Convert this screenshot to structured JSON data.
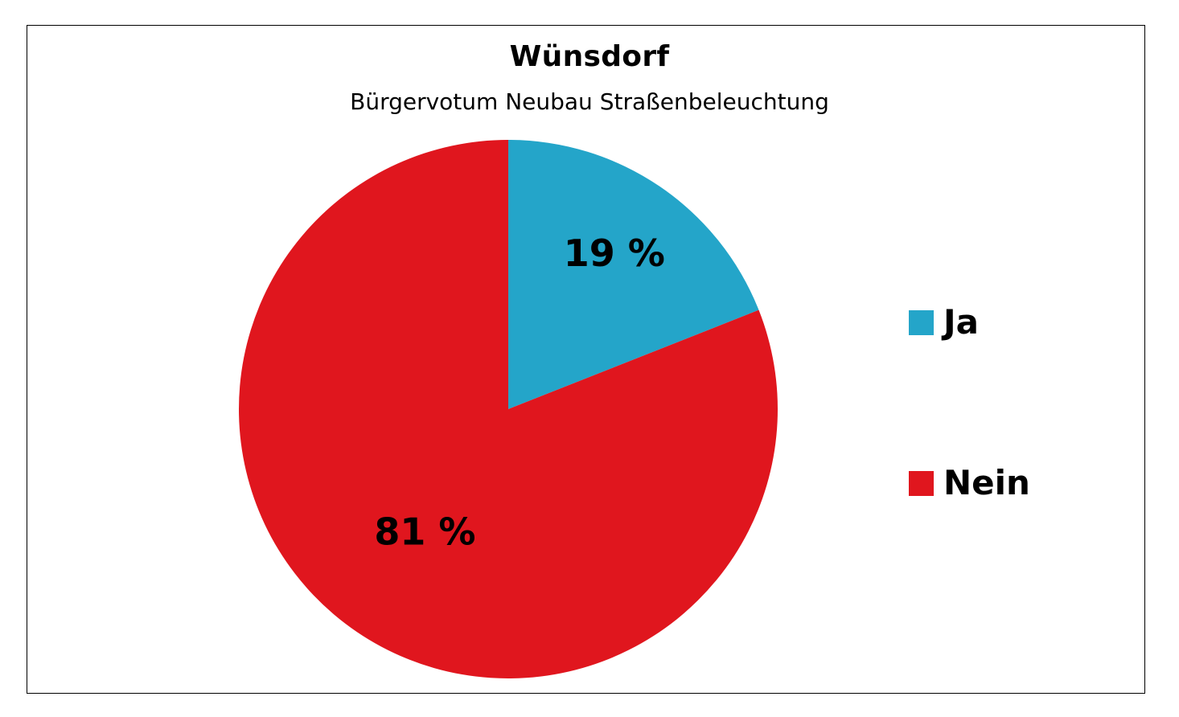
{
  "chart_data": {
    "type": "pie",
    "title": "Wünsdorf",
    "subtitle": "Bürgervotum Neubau Straßenbeleuchtung",
    "categories": [
      "Ja",
      "Nein"
    ],
    "values": [
      19,
      81
    ],
    "data_labels": [
      "19 %",
      "81 %"
    ],
    "colors": [
      "#24A5C9",
      "#E0161E"
    ],
    "legend_position": "right"
  }
}
